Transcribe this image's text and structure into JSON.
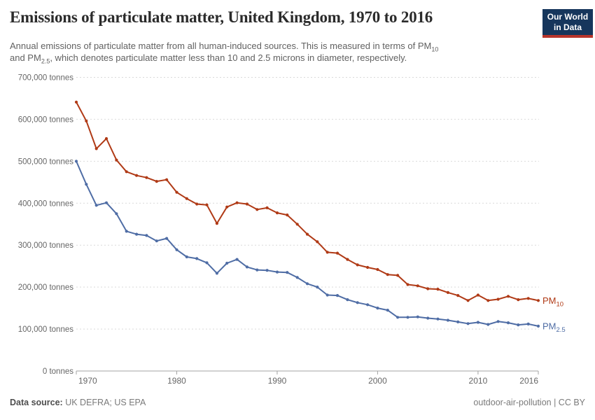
{
  "header": {
    "title": "Emissions of particulate matter, United Kingdom, 1970 to 2016",
    "logo": {
      "line1": "Our World",
      "line2": "in Data",
      "bg_color": "#16365C",
      "bar_color": "#B8352B"
    }
  },
  "subtitle": {
    "lines": [
      [
        {
          "t": "Annual emissions of particulate matter from all human-induced sources. This is measured in terms of PM"
        },
        {
          "s": "10"
        }
      ],
      [
        {
          "t": "and PM"
        },
        {
          "s": "2.5"
        },
        {
          "t": ", which denotes particulate matter less than 10 and 2.5 microns in diameter, respectively."
        }
      ]
    ]
  },
  "chart_data": {
    "type": "line",
    "title": "Emissions of particulate matter, United Kingdom, 1970 to 2016",
    "unit": "tonnes",
    "grid": "horizontal-dashed",
    "legend_position": "right-of-line-end",
    "xlim": [
      1970,
      2016
    ],
    "ylim": [
      0,
      700000
    ],
    "x": [
      1970,
      1971,
      1972,
      1973,
      1974,
      1975,
      1976,
      1977,
      1978,
      1979,
      1980,
      1981,
      1982,
      1983,
      1984,
      1985,
      1986,
      1987,
      1988,
      1989,
      1990,
      1991,
      1992,
      1993,
      1994,
      1995,
      1996,
      1997,
      1998,
      1999,
      2000,
      2001,
      2002,
      2003,
      2004,
      2005,
      2006,
      2007,
      2008,
      2009,
      2010,
      2011,
      2012,
      2013,
      2014,
      2015,
      2016
    ],
    "xticks": [
      1970,
      1980,
      1990,
      2000,
      2010,
      2016
    ],
    "xticklabels": [
      "1970",
      "1980",
      "1990",
      "2000",
      "2010",
      "2016"
    ],
    "yticks": [
      0,
      100000,
      200000,
      300000,
      400000,
      500000,
      600000,
      700000
    ],
    "yticklabels": [
      "0 tonnes",
      "100,000 tonnes",
      "200,000 tonnes",
      "300,000 tonnes",
      "400,000 tonnes",
      "500,000 tonnes",
      "600,000 tonnes",
      "700,000 tonnes"
    ],
    "series": [
      {
        "id": "pm10",
        "name": "PM10",
        "label_prefix": "PM",
        "label_sub": "10",
        "color": "#B03A16",
        "values": [
          641000,
          596000,
          530000,
          554000,
          503000,
          475000,
          466000,
          461000,
          452000,
          456000,
          426000,
          411000,
          398000,
          396000,
          352000,
          391000,
          401000,
          398000,
          385000,
          389000,
          377000,
          372000,
          350000,
          326000,
          308000,
          283000,
          281000,
          266000,
          253000,
          247000,
          242000,
          230000,
          228000,
          206000,
          203000,
          196000,
          195000,
          187000,
          180000,
          168000,
          181000,
          168000,
          171000,
          178000,
          170000,
          173000,
          168000
        ]
      },
      {
        "id": "pm25",
        "name": "PM2.5",
        "label_prefix": "PM",
        "label_sub": "2.5",
        "color": "#4F6DA5",
        "values": [
          500000,
          445000,
          395000,
          401000,
          375000,
          333000,
          326000,
          323000,
          310000,
          316000,
          289000,
          272000,
          268000,
          258000,
          233000,
          257000,
          266000,
          248000,
          241000,
          240000,
          236000,
          235000,
          223000,
          208000,
          200000,
          181000,
          180000,
          170000,
          163000,
          158000,
          150000,
          145000,
          128000,
          128000,
          129000,
          126000,
          124000,
          121000,
          117000,
          113000,
          116000,
          111000,
          118000,
          115000,
          110000,
          112000,
          107000
        ]
      }
    ]
  },
  "footer": {
    "source_label": "Data source:",
    "source_value": "UK DEFRA; US EPA",
    "note_right": "outdoor-air-pollution | CC BY"
  }
}
